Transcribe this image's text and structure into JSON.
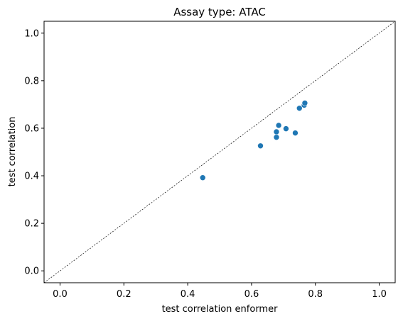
{
  "chart_data": {
    "type": "scatter",
    "title": "Assay type: ATAC",
    "xlabel": "test correlation enformer",
    "ylabel": "test correlation",
    "xlim": [
      -0.05,
      1.05
    ],
    "ylim": [
      -0.05,
      1.05
    ],
    "xticks": [
      0.0,
      0.2,
      0.4,
      0.6,
      0.8,
      1.0
    ],
    "yticks": [
      0.0,
      0.2,
      0.4,
      0.6,
      0.8,
      1.0
    ],
    "tick_labels_x": [
      "0.0",
      "0.2",
      "0.4",
      "0.6",
      "0.8",
      "1.0"
    ],
    "tick_labels_y": [
      "0.0",
      "0.2",
      "0.4",
      "0.6",
      "0.8",
      "1.0"
    ],
    "grid": false,
    "diagonal_reference_line": true,
    "marker_color": "#1f77b4",
    "points": [
      {
        "x": 0.447,
        "y": 0.392
      },
      {
        "x": 0.628,
        "y": 0.526
      },
      {
        "x": 0.678,
        "y": 0.562
      },
      {
        "x": 0.678,
        "y": 0.585
      },
      {
        "x": 0.685,
        "y": 0.612
      },
      {
        "x": 0.708,
        "y": 0.598
      },
      {
        "x": 0.737,
        "y": 0.58
      },
      {
        "x": 0.75,
        "y": 0.684
      },
      {
        "x": 0.765,
        "y": 0.697
      },
      {
        "x": 0.767,
        "y": 0.706
      }
    ]
  }
}
